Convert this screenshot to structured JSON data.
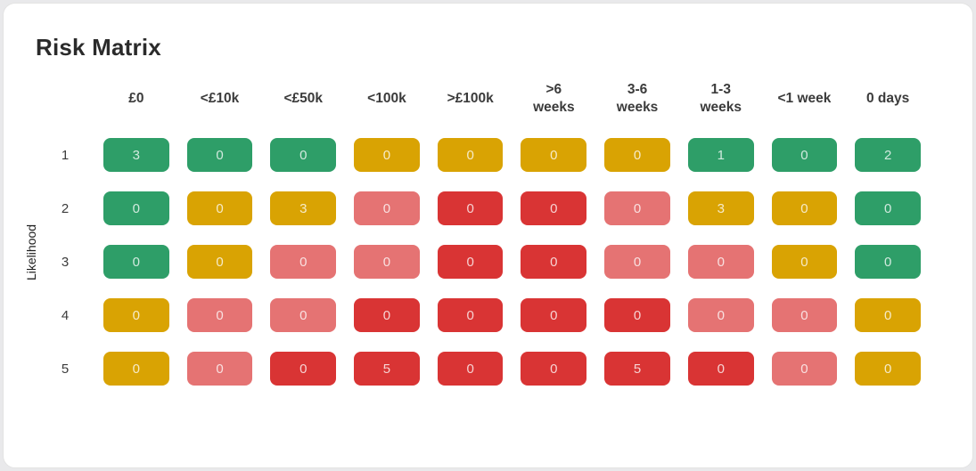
{
  "chart_data": {
    "type": "heatmap",
    "title": "Risk Matrix",
    "ylabel": "Likelihood",
    "columns": [
      "£0",
      "<£10k",
      "<£50k",
      "<100k",
      ">£100k",
      ">6\nweeks",
      "3-6\nweeks",
      "1-3\nweeks",
      "<1 week",
      "0 days"
    ],
    "rows": [
      "1",
      "2",
      "3",
      "4",
      "5"
    ],
    "values": [
      [
        3,
        0,
        0,
        0,
        0,
        0,
        0,
        1,
        0,
        2
      ],
      [
        0,
        0,
        3,
        0,
        0,
        0,
        0,
        3,
        0,
        0
      ],
      [
        0,
        0,
        0,
        0,
        0,
        0,
        0,
        0,
        0,
        0
      ],
      [
        0,
        0,
        0,
        0,
        0,
        0,
        0,
        0,
        0,
        0
      ],
      [
        0,
        0,
        0,
        5,
        0,
        0,
        5,
        0,
        0,
        0
      ]
    ],
    "cell_colors": [
      [
        "green",
        "green",
        "green",
        "amber",
        "amber",
        "amber",
        "amber",
        "green",
        "green",
        "green"
      ],
      [
        "green",
        "amber",
        "amber",
        "salmon",
        "red",
        "red",
        "salmon",
        "amber",
        "amber",
        "green"
      ],
      [
        "green",
        "amber",
        "salmon",
        "salmon",
        "red",
        "red",
        "salmon",
        "salmon",
        "amber",
        "green"
      ],
      [
        "amber",
        "salmon",
        "salmon",
        "red",
        "red",
        "red",
        "red",
        "salmon",
        "salmon",
        "amber"
      ],
      [
        "amber",
        "salmon",
        "red",
        "red",
        "red",
        "red",
        "red",
        "red",
        "salmon",
        "amber"
      ]
    ],
    "palette": {
      "green": "#2E9E68",
      "amber": "#D9A303",
      "salmon": "#E57373",
      "red": "#D93434"
    },
    "legend_position": "none",
    "grid": false
  }
}
